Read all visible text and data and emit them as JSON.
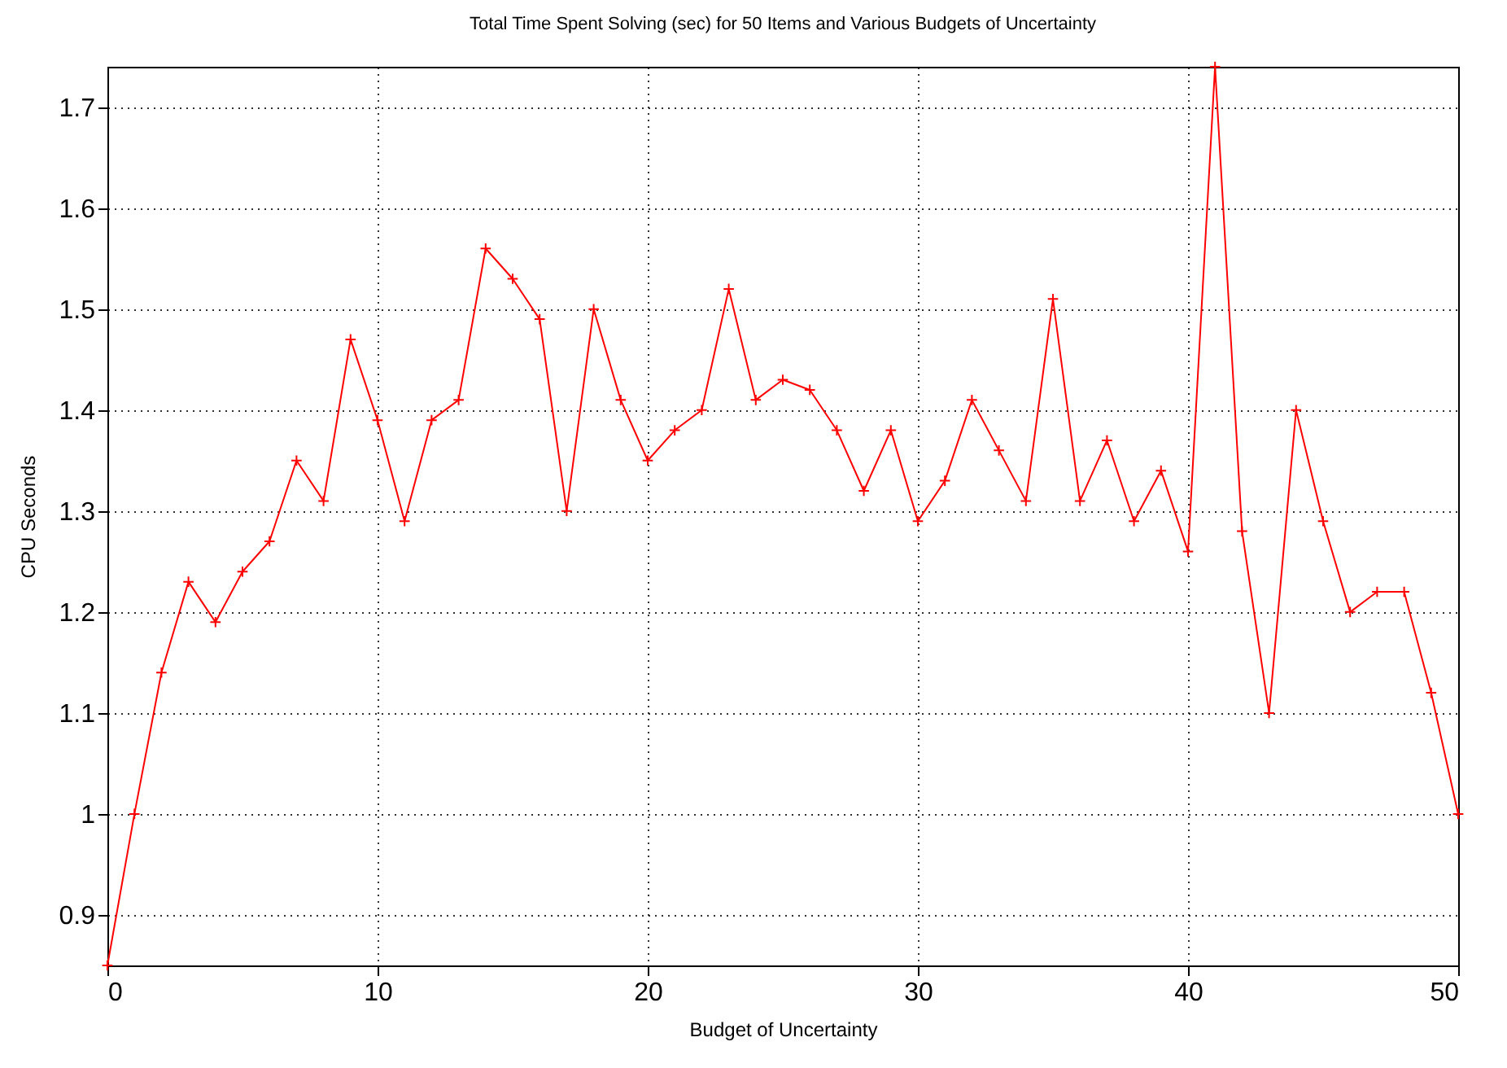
{
  "chart_data": {
    "type": "line",
    "title": "Total Time Spent Solving (sec) for 50 Items and Various Budgets of Uncertainty",
    "xlabel": "Budget of Uncertainty",
    "ylabel": "CPU Seconds",
    "x": [
      0,
      1,
      2,
      3,
      4,
      5,
      6,
      7,
      8,
      9,
      10,
      11,
      12,
      13,
      14,
      15,
      16,
      17,
      18,
      19,
      20,
      21,
      22,
      23,
      24,
      25,
      26,
      27,
      28,
      29,
      30,
      31,
      32,
      33,
      34,
      35,
      36,
      37,
      38,
      39,
      40,
      41,
      42,
      43,
      44,
      45,
      46,
      47,
      48,
      49,
      50
    ],
    "series": [
      {
        "color": "#ff0000",
        "values": [
          0.85,
          1.0,
          1.14,
          1.23,
          1.19,
          1.24,
          1.27,
          1.35,
          1.31,
          1.47,
          1.39,
          1.29,
          1.39,
          1.41,
          1.56,
          1.53,
          1.49,
          1.3,
          1.5,
          1.41,
          1.35,
          1.38,
          1.4,
          1.52,
          1.41,
          1.43,
          1.42,
          1.38,
          1.32,
          1.38,
          1.29,
          1.33,
          1.41,
          1.36,
          1.31,
          1.51,
          1.31,
          1.37,
          1.29,
          1.34,
          1.26,
          1.74,
          1.28,
          1.1,
          1.4,
          1.29,
          1.2,
          1.22,
          1.22,
          1.12,
          1.0
        ]
      }
    ],
    "xlim": [
      0,
      50
    ],
    "xticks": [
      0,
      10,
      20,
      30,
      40,
      50
    ],
    "ylim": [
      0.85,
      1.74
    ],
    "yticks": [
      0.9,
      1,
      1.1,
      1.2,
      1.3,
      1.4,
      1.5,
      1.6,
      1.7
    ],
    "grid": true,
    "marker": "cross",
    "line_style": "solid"
  }
}
